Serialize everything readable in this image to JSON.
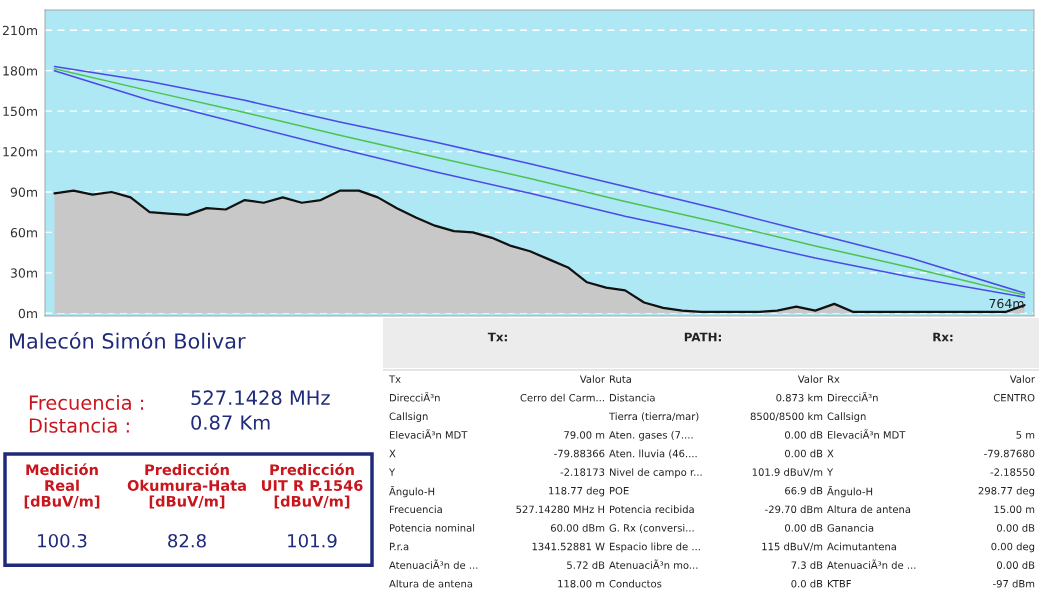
{
  "chart_data": [
    {
      "type": "area",
      "categories": [
        null,
        null,
        null,
        null,
        null,
        null,
        null,
        null,
        null,
        null,
        null,
        null,
        null,
        null,
        null,
        null,
        null,
        null,
        null,
        null,
        null,
        null,
        null,
        null,
        null,
        null,
        null,
        null,
        null,
        null,
        null,
        null,
        null,
        null,
        null,
        null,
        null,
        null,
        null,
        null,
        null,
        null,
        null,
        null,
        null,
        null,
        null,
        null,
        null,
        null,
        null,
        null
      ],
      "series": [
        {
          "type": "area",
          "color": "#c8c8c8",
          "values": [
            89,
            91,
            88,
            90,
            86,
            75,
            74,
            73,
            78,
            77,
            84,
            82,
            86,
            82,
            84,
            91,
            91,
            86,
            78,
            71,
            65,
            61,
            60,
            56,
            50,
            46,
            40,
            34,
            23,
            19,
            17,
            8,
            4,
            2,
            1,
            1,
            1,
            1,
            2,
            5,
            2,
            7,
            1,
            1,
            1,
            1,
            1,
            1,
            1,
            1,
            1,
            6
          ]
        },
        {
          "type": "line",
          "color": "#4ec24e",
          "values": [
            181.5,
            null,
            null,
            null,
            null,
            165,
            null,
            null,
            null,
            null,
            149,
            null,
            null,
            null,
            null,
            132,
            null,
            null,
            null,
            null,
            116,
            null,
            null,
            null,
            null,
            100,
            null,
            null,
            null,
            null,
            83,
            null,
            null,
            null,
            null,
            67,
            null,
            null,
            null,
            null,
            50,
            null,
            null,
            null,
            null,
            34,
            null,
            null,
            null,
            null,
            null,
            13.5
          ]
        },
        {
          "type": "line",
          "color": "#4a4ae8",
          "values": [
            183,
            null,
            null,
            null,
            null,
            172,
            null,
            null,
            null,
            null,
            158,
            null,
            null,
            null,
            null,
            142,
            null,
            null,
            null,
            null,
            127,
            null,
            null,
            null,
            null,
            111,
            null,
            null,
            null,
            null,
            94,
            null,
            null,
            null,
            null,
            77,
            null,
            null,
            null,
            null,
            59,
            null,
            null,
            null,
            null,
            41,
            null,
            null,
            null,
            null,
            null,
            15
          ]
        },
        {
          "type": "line",
          "color": "#4a4ae8",
          "values": [
            180,
            null,
            null,
            null,
            null,
            158,
            null,
            null,
            null,
            null,
            140,
            null,
            null,
            null,
            null,
            122,
            null,
            null,
            null,
            null,
            105,
            null,
            null,
            null,
            null,
            89,
            null,
            null,
            null,
            null,
            72,
            null,
            null,
            null,
            null,
            57,
            null,
            null,
            null,
            null,
            41,
            null,
            null,
            null,
            null,
            27,
            null,
            null,
            null,
            null,
            null,
            12
          ]
        }
      ],
      "ylim": [
        -2,
        225
      ],
      "yticks": [
        {
          "value": 0,
          "label": "0m"
        },
        {
          "value": 30,
          "label": "30m"
        },
        {
          "value": 60,
          "label": "60m"
        },
        {
          "value": 90,
          "label": "90m"
        },
        {
          "value": 120,
          "label": "120m"
        },
        {
          "value": 150,
          "label": "150m"
        },
        {
          "value": 180,
          "label": "180m"
        },
        {
          "value": 210,
          "label": "210m"
        }
      ],
      "grid": "y",
      "tick_labels": "y",
      "annotations": [
        "764m"
      ]
    },
    {
      "type": "other",
      "title": "Malecón Simón Bolivar",
      "annotations": [
        "Frecuencia :",
        "527.1428 MHz",
        "Distancia :",
        "0.87 Km",
        "Medición\nReal\n[dBuV/m]",
        "Predicción\nOkumura-Hata\n[dBuV/m]",
        "Predicción\nUIT R P.1546\n[dBuV/m]",
        "100.3",
        "82.8",
        "101.9"
      ]
    },
    {
      "type": "other",
      "annotations": [
        "Tx:",
        "PATH:",
        "Rx:",
        "Tx",
        "Valor",
        "Ruta",
        "Valor",
        "Rx",
        "Valor",
        "DirecciÃ³n",
        "Cerro del Carm...",
        "Distancia",
        "0.873 km",
        "DirecciÃ³n",
        "CENTRO",
        "Callsign",
        null,
        "Tierra (tierra/mar)",
        "8500/8500 km",
        "Callsign",
        null,
        "ElevaciÃ³n MDT",
        "79.00 m",
        "Aten. gases (7....",
        "0.00 dB",
        "ElevaciÃ³n MDT",
        "5 m",
        "X",
        "-79.88366",
        "Aten. lluvia (46....",
        "0.00 dB",
        "X",
        "-79.87680",
        "Y",
        "-2.18173",
        "Nivel de campo r...",
        "101.9 dBuV/m",
        "Y",
        "-2.18550",
        "Ãngulo-H",
        "118.77 deg",
        "POE",
        "66.9 dB",
        "Ãngulo-H",
        "298.77 deg",
        "Frecuencia",
        "527.14280 MHz H",
        "Potencia recibida",
        "-29.70 dBm",
        "Altura de antena",
        "15.00 m",
        "Potencia nominal",
        "60.00 dBm",
        "G. Rx (conversi...",
        "0.00 dB",
        "Ganancia",
        "0.00 dB",
        "P.r.a",
        "1341.52881 W",
        "Espacio libre de ...",
        "115 dBuV/m",
        "Acimutantena",
        "0.00 deg",
        "AtenuaciÃ³n de ...",
        "5.72 dB",
        "AtenuaciÃ³n mo...",
        "7.3 dB",
        "AtenuaciÃ³n de ...",
        "0.00 dB",
        "Altura de antena",
        "118.00 m",
        "Conductos",
        "0.0 dB",
        "KTBF",
        "-97 dBm"
      ]
    }
  ]
}
